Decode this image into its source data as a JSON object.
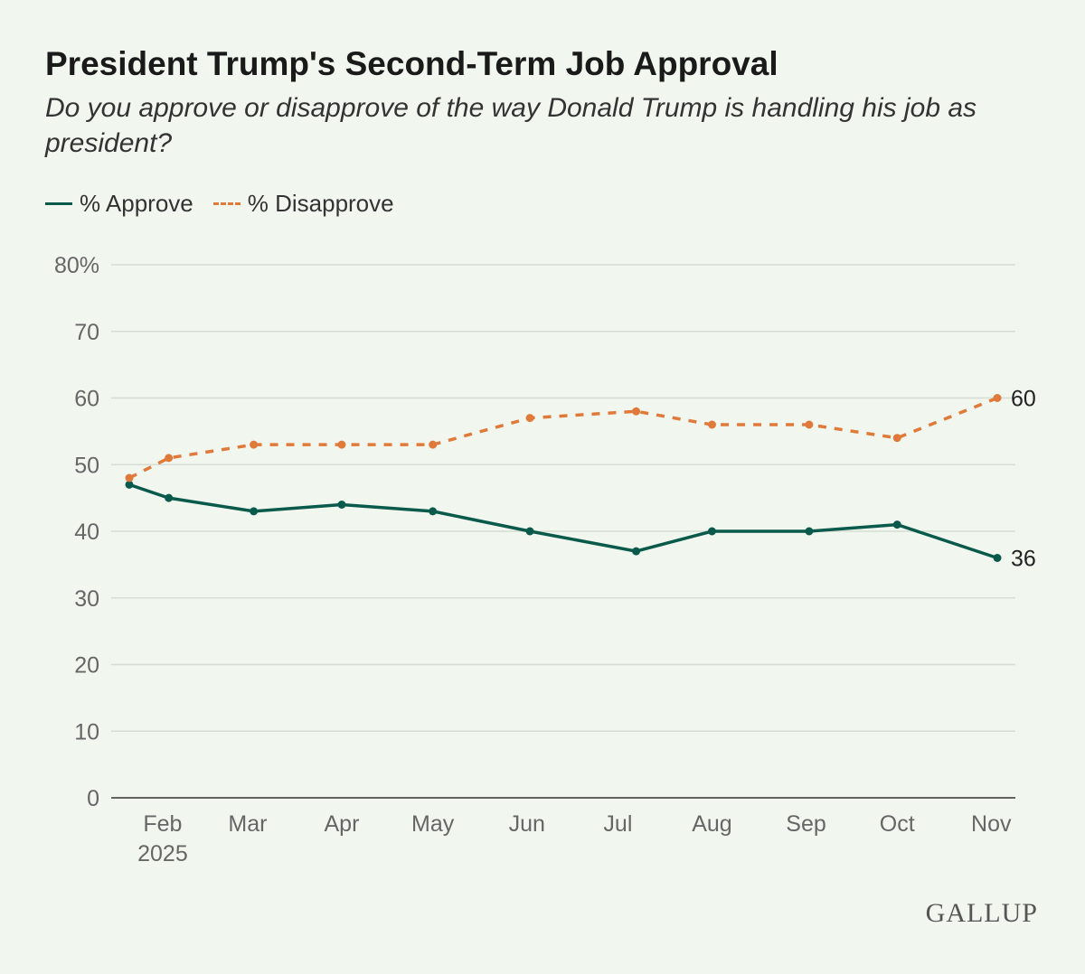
{
  "title": "President Trump's Second-Term Job Approval",
  "subtitle": "Do you approve or disapprove of the way Donald Trump is handling his job as president?",
  "logo": "GALLUP",
  "colors": {
    "approve": "#0a5a4c",
    "disapprove": "#e07a3a",
    "grid": "#d6ddd4",
    "background": "#f1f7ef"
  },
  "chart_data": {
    "type": "line",
    "title": "President Trump's Second-Term Job Approval",
    "xlabel": "",
    "ylabel": "",
    "ylim": [
      0,
      80
    ],
    "y_ticks": [
      "0",
      "10",
      "20",
      "30",
      "40",
      "50",
      "60",
      "70",
      "80%"
    ],
    "y_tick_values": [
      0,
      10,
      20,
      30,
      40,
      50,
      60,
      70,
      80
    ],
    "x_ticks": [
      {
        "label": "Feb",
        "sub": "2025",
        "date": "2025-02-01"
      },
      {
        "label": "Mar",
        "date": "2025-03-01"
      },
      {
        "label": "Apr",
        "date": "2025-04-01"
      },
      {
        "label": "May",
        "date": "2025-05-01"
      },
      {
        "label": "Jun",
        "date": "2025-06-01"
      },
      {
        "label": "Jul",
        "date": "2025-07-01"
      },
      {
        "label": "Aug",
        "date": "2025-08-01"
      },
      {
        "label": "Sep",
        "date": "2025-09-01"
      },
      {
        "label": "Oct",
        "date": "2025-10-01"
      },
      {
        "label": "Nov",
        "date": "2025-11-01"
      }
    ],
    "x": [
      "2025-01-21",
      "2025-02-03",
      "2025-03-03",
      "2025-04-01",
      "2025-05-01",
      "2025-06-02",
      "2025-07-07",
      "2025-08-01",
      "2025-09-02",
      "2025-10-01",
      "2025-11-03"
    ],
    "grid": true,
    "legend": "top-left",
    "series": [
      {
        "name": "% Approve",
        "style": "solid",
        "values": [
          47,
          45,
          43,
          44,
          43,
          40,
          37,
          40,
          40,
          41,
          36
        ],
        "end_label": "36"
      },
      {
        "name": "% Disapprove",
        "style": "dashed",
        "values": [
          48,
          51,
          53,
          53,
          53,
          57,
          58,
          56,
          56,
          54,
          60
        ],
        "end_label": "60"
      }
    ]
  }
}
